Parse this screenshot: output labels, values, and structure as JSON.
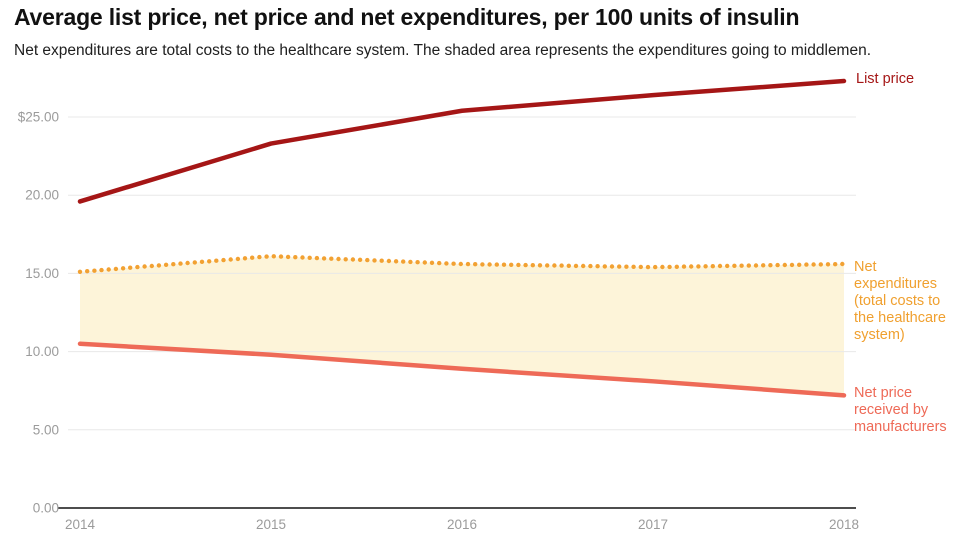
{
  "header": {
    "title": "Average list price, net price and net expenditures, per 100 units of insulin",
    "subtitle": "Net expenditures are total costs to the healthcare system. The shaded area represents the expenditures going to middlemen."
  },
  "chart_data": {
    "type": "line",
    "title": "Average list price, net price and net expenditures, per 100 units of insulin",
    "x": [
      2014,
      2015,
      2016,
      2017,
      2018
    ],
    "x_tick_labels": [
      "2014",
      "2015",
      "2016",
      "2017",
      "2018"
    ],
    "y_ticks": [
      {
        "value": 25,
        "label": "$25.00"
      },
      {
        "value": 20,
        "label": "20.00"
      },
      {
        "value": 15,
        "label": "15.00"
      },
      {
        "value": 10,
        "label": "10.00"
      },
      {
        "value": 5,
        "label": "5.00"
      },
      {
        "value": 0,
        "label": "0.00"
      }
    ],
    "ylim": [
      0,
      27.8
    ],
    "grid": true,
    "legend_position": "right",
    "series": [
      {
        "key": "list_price",
        "name": "List price",
        "style": "solid",
        "color": "#a51616",
        "values": [
          19.6,
          23.3,
          25.4,
          26.4,
          27.3
        ]
      },
      {
        "key": "net_expenditures",
        "name": "Net expenditures (total costs to the healthcare system)",
        "style": "dotted",
        "color": "#f2a132",
        "values": [
          15.1,
          16.1,
          15.6,
          15.4,
          15.6
        ]
      },
      {
        "key": "net_price",
        "name": "Net price received by manufacturers",
        "style": "solid",
        "color": "#ee6a57",
        "values": [
          10.5,
          9.8,
          8.9,
          8.1,
          7.2
        ]
      }
    ],
    "shaded_area": {
      "between": [
        "net_expenditures",
        "net_price"
      ],
      "color": "#fdf4d9"
    },
    "annotations": [
      {
        "text": "List price",
        "color": "#a51616"
      },
      {
        "text": "Net\nexpenditures\n(total costs to\nthe healthcare\nsystem)",
        "color": "#f0a02f"
      },
      {
        "text": "Net price\nreceived by\nmanufacturers",
        "color": "#ee6a57"
      }
    ],
    "colors": {
      "grid": "#e8e8e8",
      "axis": "#4d4d4d",
      "tick_text": "#9b9b9b"
    }
  }
}
